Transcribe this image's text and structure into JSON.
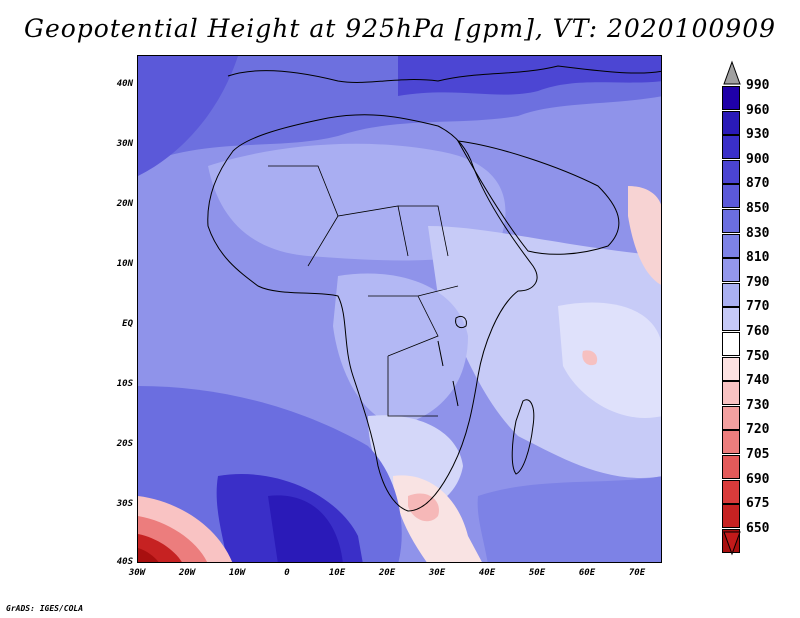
{
  "title": "Geopotential Height at 925hPa [gpm], VT: 2020100909",
  "footer": "GrADS: IGES/COLA",
  "map": {
    "region": "Africa",
    "lat_labels": [
      "40N",
      "30N",
      "20N",
      "10N",
      "EQ",
      "10S",
      "20S",
      "30S",
      "40S"
    ],
    "lon_labels": [
      "30W",
      "20W",
      "10W",
      "0",
      "10E",
      "20E",
      "30E",
      "40E",
      "50E",
      "60E",
      "70E"
    ],
    "lat_range": [
      -40,
      45
    ],
    "lon_range": [
      -30,
      75
    ]
  },
  "colorbar": {
    "labels": [
      "990",
      "960",
      "930",
      "900",
      "870",
      "850",
      "830",
      "810",
      "790",
      "770",
      "760",
      "750",
      "740",
      "730",
      "720",
      "705",
      "690",
      "675",
      "650"
    ],
    "colors": [
      "#1f00a8",
      "#2a1ab8",
      "#3a2fc8",
      "#4b44d2",
      "#5b59d9",
      "#6b6ee0",
      "#7d82e6",
      "#9397ec",
      "#aab0f2",
      "#c5c9f7",
      "#ffffff",
      "#fde2e2",
      "#f9c3c3",
      "#f3a0a0",
      "#ec7d7d",
      "#e35a5a",
      "#d93b3b",
      "#c62222",
      "#a80f0f"
    ],
    "top_arrow_color": "#a0a0a0",
    "bottom_arrow_color": "#c21a1a"
  }
}
